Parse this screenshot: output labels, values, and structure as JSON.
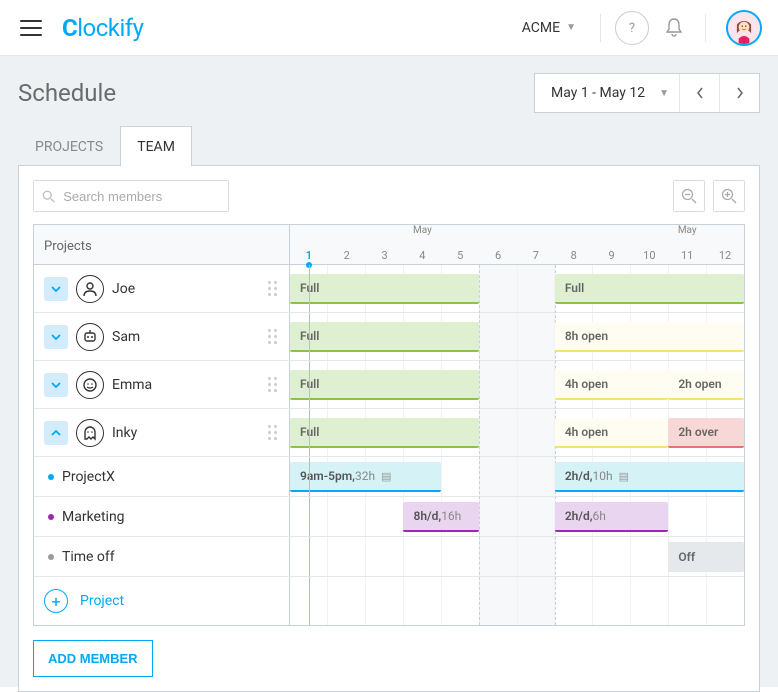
{
  "header": {
    "logo": "Clockify",
    "workspace": "ACME"
  },
  "page": {
    "title": "Schedule",
    "daterange": "May 1 - May 12"
  },
  "tabs": {
    "projects": "PROJECTS",
    "team": "TEAM",
    "active": "team"
  },
  "toolbar": {
    "search_placeholder": "Search members",
    "projects_header": "Projects"
  },
  "calendar": {
    "month_label": "May",
    "days": [
      1,
      2,
      3,
      4,
      5,
      6,
      7,
      8,
      9,
      10,
      11,
      12
    ],
    "today_index": 0,
    "weekend_indices": [
      5,
      6
    ],
    "day_count": 12,
    "cell_width_pct": 8.3333
  },
  "members": [
    {
      "name": "Joe",
      "expanded": false,
      "icon": "person",
      "bars": [
        {
          "type": "full",
          "label": "Full",
          "start": 0,
          "span": 5
        },
        {
          "type": "full",
          "label": "Full",
          "start": 7,
          "span": 5
        }
      ]
    },
    {
      "name": "Sam",
      "expanded": false,
      "icon": "robot",
      "bars": [
        {
          "type": "full",
          "label": "Full",
          "start": 0,
          "span": 5
        },
        {
          "type": "open",
          "label": "8h open",
          "start": 7,
          "span": 5
        }
      ]
    },
    {
      "name": "Emma",
      "expanded": false,
      "icon": "face",
      "bars": [
        {
          "type": "full",
          "label": "Full",
          "start": 0,
          "span": 5
        },
        {
          "type": "open",
          "label": "4h open",
          "start": 7,
          "span": 3
        },
        {
          "type": "open",
          "label": "2h open",
          "start": 10,
          "span": 2
        }
      ]
    },
    {
      "name": "Inky",
      "expanded": true,
      "icon": "ghost",
      "bars": [
        {
          "type": "full",
          "label": "Full",
          "start": 0,
          "span": 5
        },
        {
          "type": "open",
          "label": "4h open",
          "start": 7,
          "span": 3
        },
        {
          "type": "over",
          "label": "2h over",
          "start": 10,
          "span": 2
        }
      ]
    }
  ],
  "projects": [
    {
      "name": "ProjectX",
      "color": "#03a9f4",
      "bars": [
        {
          "type": "projectx",
          "label_strong": "9am-5pm,",
          "label_light": " 32h",
          "note": true,
          "start": 0,
          "span": 4
        },
        {
          "type": "projectx",
          "label_strong": "2h/d,",
          "label_light": " 10h",
          "note": true,
          "start": 7,
          "span": 5
        }
      ]
    },
    {
      "name": "Marketing",
      "color": "#9c27b0",
      "bars": [
        {
          "type": "marketing",
          "label_strong": "8h/d,",
          "label_light": " 16h",
          "start": 3,
          "span": 2
        },
        {
          "type": "marketing",
          "label_strong": "2h/d,",
          "label_light": " 6h",
          "start": 7,
          "span": 3
        }
      ]
    },
    {
      "name": "Time off",
      "color": "#999999",
      "bars": [
        {
          "type": "off",
          "label": "Off",
          "start": 10,
          "span": 2
        }
      ]
    }
  ],
  "actions": {
    "add_project": "Project",
    "add_member": "ADD MEMBER"
  },
  "colors": {
    "primary": "#03a9f4",
    "full_bg": "#dff0d0",
    "full_border": "#8bc34a",
    "open_bg": "#fffdf2",
    "open_border": "#f5e07a",
    "over_bg": "#f8d7d7",
    "over_border": "#e57373",
    "projectx_bg": "#d5f2f7",
    "projectx_border": "#03a9f4",
    "marketing_bg": "#ead5f0",
    "marketing_border": "#9c27b0",
    "off_bg": "#e6e9eb"
  }
}
